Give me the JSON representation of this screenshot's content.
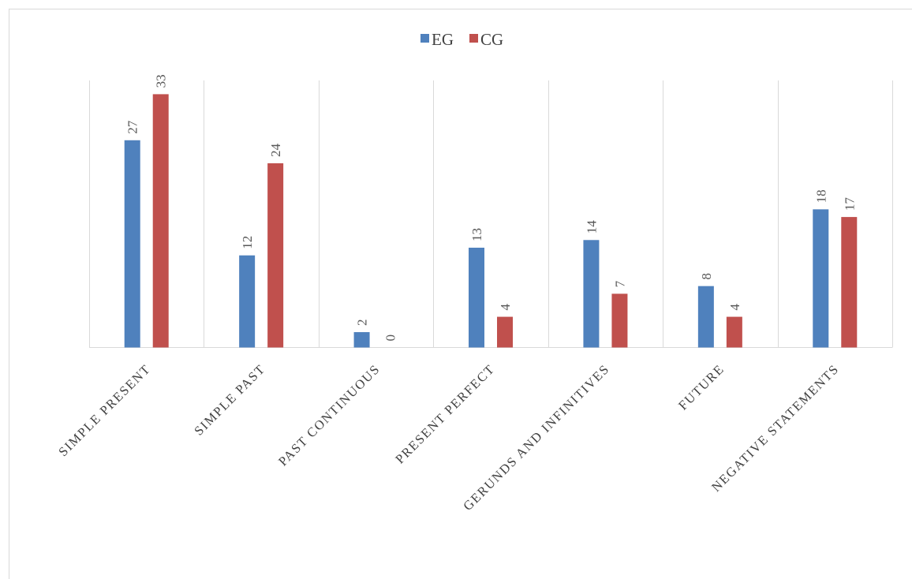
{
  "chart_data": {
    "type": "bar",
    "title": "",
    "xlabel": "",
    "ylabel": "",
    "categories": [
      "SIMPLE PRESENT",
      "SIMPLE PAST",
      "PAST CONTINUOUS",
      "PRESENT PERFECT",
      "GERUNDS AND INFINITIVES",
      "FUTURE",
      "NEGATIVE STATEMENTS"
    ],
    "series": [
      {
        "name": "EG",
        "color": "#4F81BD",
        "values": [
          27,
          12,
          2,
          13,
          14,
          8,
          18
        ]
      },
      {
        "name": "CG",
        "color": "#C0504D",
        "values": [
          33,
          24,
          0,
          4,
          7,
          4,
          17
        ]
      }
    ],
    "ylim": [
      0,
      35
    ],
    "legend": "top-center",
    "grid": "vertical category separators",
    "data_labels": "rotated above bars",
    "y_axis_visible": false
  }
}
